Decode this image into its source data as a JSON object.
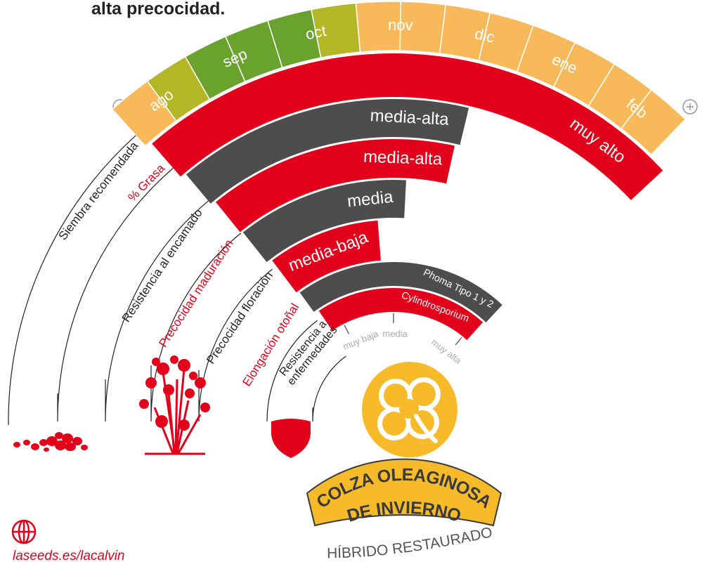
{
  "header": {
    "title": "alta precocidad."
  },
  "months": [
    "ago",
    "sep",
    "oct",
    "nov",
    "dic",
    "ene",
    "feb"
  ],
  "traits": [
    {
      "label": "Siembra recomendada"
    },
    {
      "label": "% Grasa",
      "rating": "muy alto"
    },
    {
      "label": "Resistencia al encamado",
      "rating": "media-alta"
    },
    {
      "label": "Precocidad maduración",
      "rating": "media-alta"
    },
    {
      "label": "Precocidad floración",
      "rating": "media"
    },
    {
      "label": "Elongación otoñal",
      "rating": "media-baja"
    },
    {
      "label": [
        "Resistencia a",
        "enfermedades"
      ],
      "diseases": [
        {
          "name": "Phoma Tipo 1 y 2"
        },
        {
          "name": "Cylindrosporium"
        }
      ]
    }
  ],
  "disease_scale": [
    "muy baja",
    "media",
    "muy alta"
  ],
  "product": {
    "name": [
      "COLZA OLEAGINOSA",
      "DE INVIERNO"
    ],
    "type": "HÍBRIDO RESTAURADO"
  },
  "footer": {
    "url": "laseeds.es/lacalvin"
  }
}
